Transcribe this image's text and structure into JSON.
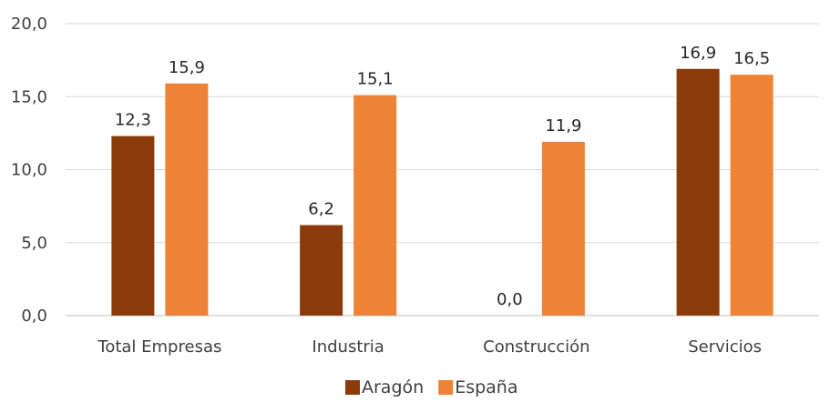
{
  "chart_data": {
    "type": "bar",
    "categories": [
      "Total Empresas",
      "Industria",
      "Construcción",
      "Servicios"
    ],
    "series": [
      {
        "name": "Aragón",
        "values": [
          12.3,
          6.2,
          0.0,
          16.9
        ],
        "color": "#8B3A0B"
      },
      {
        "name": "España",
        "values": [
          15.9,
          15.1,
          11.9,
          16.5
        ],
        "color": "#EE8236"
      }
    ],
    "data_labels": [
      [
        "12,3",
        "6,2",
        "0,0",
        "16,9"
      ],
      [
        "15,9",
        "15,1",
        "11,9",
        "16,5"
      ]
    ],
    "yticks": [
      "0,0",
      "5,0",
      "10,0",
      "15,0",
      "20,0"
    ],
    "ytick_values": [
      0,
      5,
      10,
      15,
      20
    ],
    "ylim": [
      0,
      20
    ],
    "grid": true,
    "legend": "bottom",
    "title": "",
    "xlabel": "",
    "ylabel": ""
  }
}
